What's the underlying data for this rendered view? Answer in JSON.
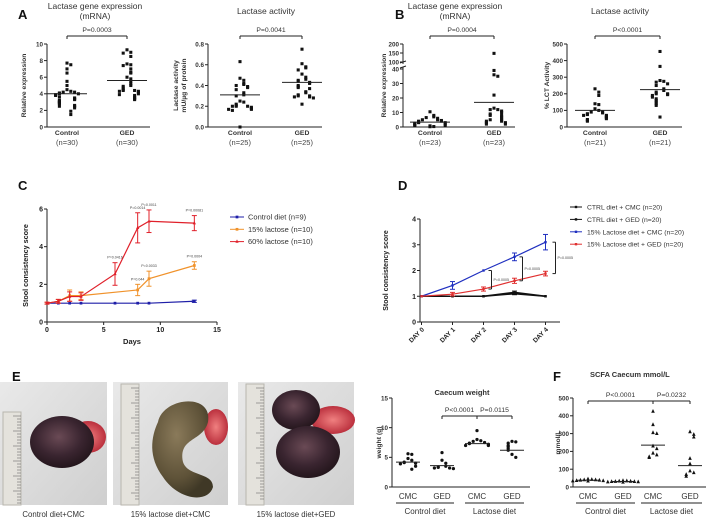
{
  "figure": {
    "panel_labels": [
      "A",
      "B",
      "C",
      "D",
      "E",
      "F"
    ],
    "photos": [
      {
        "caption": "Control diet+CMC"
      },
      {
        "caption": "15% lactose diet+CMC"
      },
      {
        "caption": "15% lactose diet+GED"
      }
    ]
  },
  "chart_data": [
    {
      "type": "scatter",
      "title_lines": [
        "Lactase gene expression",
        "(mRNA)"
      ],
      "ylabel_lines": [
        "Relative expression"
      ],
      "ylim": [
        0,
        10
      ],
      "yticks": [
        "0",
        "2",
        "4",
        "6",
        "8",
        "10"
      ],
      "categories": [
        "Control",
        "GED"
      ],
      "n_labels": [
        "(n=30)",
        "(n=30)"
      ],
      "groups": [
        {
          "values": [
            7.7,
            7.5,
            7.0,
            6.5,
            5.5,
            5.0,
            4.5,
            4.3,
            4.2,
            4.2,
            4.1,
            4.0,
            4.0,
            3.9,
            3.8,
            3.6,
            3.5,
            3.4,
            3.3,
            3.2,
            3.1,
            3.0,
            2.9,
            2.8,
            2.6,
            2.5,
            2.5,
            2.3,
            1.9,
            1.5
          ],
          "mean": 4.0
        },
        {
          "values": [
            9.3,
            9.0,
            8.9,
            8.5,
            7.6,
            7.5,
            7.4,
            7.0,
            6.6,
            6.5,
            6.0,
            5.8,
            5.5,
            5.2,
            5.0,
            4.9,
            4.7,
            4.5,
            4.4,
            4.4,
            4.3,
            4.3,
            4.2,
            4.0,
            3.9,
            3.8,
            3.6,
            3.5,
            3.4,
            3.3
          ],
          "mean": 5.6
        }
      ],
      "comparisons": [
        {
          "between": [
            0,
            1
          ],
          "label": "P=0.0003"
        }
      ]
    },
    {
      "type": "scatter",
      "title_lines": [
        "Lactase activity"
      ],
      "ylabel_lines": [
        "Lactase activity",
        "mU/µg of protein"
      ],
      "ylim": [
        0,
        0.8
      ],
      "yticks": [
        "0.0",
        "0.2",
        "0.4",
        "0.6",
        "0.8"
      ],
      "categories": [
        "Control",
        "GED"
      ],
      "n_labels": [
        "(n=25)",
        "(n=25)"
      ],
      "groups": [
        {
          "values": [
            0.63,
            0.47,
            0.45,
            0.42,
            0.41,
            0.4,
            0.39,
            0.38,
            0.36,
            0.33,
            0.31,
            0.3,
            0.25,
            0.24,
            0.22,
            0.21,
            0.2,
            0.2,
            0.2,
            0.19,
            0.18,
            0.17,
            0.17,
            0.16,
            0.0
          ],
          "mean": 0.31
        },
        {
          "values": [
            0.75,
            0.61,
            0.58,
            0.57,
            0.55,
            0.51,
            0.48,
            0.46,
            0.45,
            0.44,
            0.43,
            0.42,
            0.4,
            0.39,
            0.38,
            0.37,
            0.34,
            0.33,
            0.31,
            0.3,
            0.3,
            0.29,
            0.29,
            0.28,
            0.22
          ],
          "mean": 0.43
        }
      ],
      "comparisons": [
        {
          "between": [
            0,
            1
          ],
          "label": "P=0.0041"
        }
      ]
    },
    {
      "type": "scatter",
      "title_lines": [
        "Lactase gene expression",
        "(mRNA)"
      ],
      "ylabel_lines": [
        "Relative expression"
      ],
      "ylim": [
        0,
        200
      ],
      "axis_break": [
        40,
        100
      ],
      "yticks": [
        "0",
        "10",
        "20",
        "30",
        "40",
        "100",
        "150",
        "200"
      ],
      "categories": [
        "Control",
        "GED"
      ],
      "n_labels": [
        "(n=23)",
        "(n=23)"
      ],
      "groups": [
        {
          "values": [
            10.5,
            8,
            7,
            6.5,
            6,
            5,
            5,
            4.5,
            4,
            4,
            3.5,
            3,
            3,
            2.5,
            2,
            2,
            1.5,
            1,
            1,
            0.8,
            0.5,
            0.3,
            0.2
          ],
          "mean": 3.4
        },
        {
          "values": [
            148,
            39,
            36,
            35,
            22,
            13,
            12,
            12,
            11,
            10,
            9,
            8,
            8,
            7,
            6,
            5,
            5,
            4,
            4,
            3,
            3,
            2,
            2
          ],
          "mean": 17
        }
      ],
      "comparisons": [
        {
          "between": [
            0,
            1
          ],
          "label": "P=0.0004"
        }
      ]
    },
    {
      "type": "scatter",
      "title_lines": [
        "Lactase activity"
      ],
      "ylabel_lines": [
        "% LCT Activity"
      ],
      "ylim": [
        0,
        500
      ],
      "yticks": [
        "0",
        "100",
        "200",
        "300",
        "400",
        "500"
      ],
      "categories": [
        "Control",
        "GED"
      ],
      "n_labels": [
        "(n=21)",
        "(n=21)"
      ],
      "groups": [
        {
          "values": [
            230,
            210,
            190,
            140,
            135,
            110,
            100,
            90,
            90,
            85,
            80,
            75,
            70,
            70,
            65,
            60,
            55,
            50,
            45,
            40,
            35
          ],
          "mean": 100
        },
        {
          "values": [
            455,
            365,
            280,
            275,
            270,
            260,
            250,
            230,
            220,
            210,
            200,
            200,
            195,
            190,
            180,
            170,
            160,
            150,
            140,
            130,
            60
          ],
          "mean": 225
        }
      ],
      "comparisons": [
        {
          "between": [
            0,
            1
          ],
          "label": "P<0.0001"
        }
      ]
    },
    {
      "type": "line",
      "xlabel": "Days",
      "ylabel": "Stool consistency score",
      "xlim": [
        0,
        15
      ],
      "xticks": [
        "0",
        "5",
        "10",
        "15"
      ],
      "ylim": [
        0,
        6
      ],
      "yticks": [
        "0",
        "2",
        "4",
        "6"
      ],
      "legend": "right",
      "series": [
        {
          "name": "Control diet (n=9)",
          "color": "#1f1fa8",
          "marker": "square",
          "x": [
            0,
            1,
            2,
            3,
            6,
            8,
            9,
            13
          ],
          "y": [
            1,
            1,
            1,
            1,
            1,
            1,
            1,
            1.1
          ],
          "err": [
            0,
            0,
            0,
            0,
            0,
            0,
            0,
            0.06
          ]
        },
        {
          "name": "15% lactose (n=10)",
          "color": "#f0922b",
          "marker": "square",
          "x": [
            0,
            1,
            2,
            3,
            8,
            9,
            13
          ],
          "y": [
            1,
            1.1,
            1.4,
            1.4,
            1.7,
            2.3,
            3.0
          ],
          "err": [
            0.05,
            0.1,
            0.3,
            0.2,
            0.3,
            0.4,
            0.2
          ]
        },
        {
          "name": "60% lactose (n=10)",
          "color": "#e0202a",
          "marker": "triangle",
          "x": [
            0,
            1,
            2,
            3,
            6,
            8,
            9,
            13
          ],
          "y": [
            1,
            1.1,
            1.35,
            1.35,
            2.55,
            5.0,
            5.35,
            5.25
          ],
          "err": [
            0.05,
            0.1,
            0.25,
            0.2,
            0.6,
            0.8,
            0.6,
            0.4
          ]
        }
      ],
      "annotations": [
        {
          "series": 2,
          "x": 6,
          "label": "P=0.0416"
        },
        {
          "series": 2,
          "x": 8,
          "label": "P=0.0014"
        },
        {
          "series": 2,
          "x": 9,
          "label": "P=0.0011"
        },
        {
          "series": 2,
          "x": 13,
          "label": "P=0.00081"
        },
        {
          "series": 1,
          "x": 8,
          "label": "P=0.044"
        },
        {
          "series": 1,
          "x": 9,
          "label": "P=0.0033"
        },
        {
          "series": 1,
          "x": 13,
          "label": "P=0.0004"
        }
      ]
    },
    {
      "type": "line",
      "ylabel": "Stool consistency score",
      "categories": [
        "DAY 0",
        "DAY 1",
        "DAY 2",
        "DAY 3",
        "DAY 4"
      ],
      "ylim": [
        0,
        4
      ],
      "yticks": [
        "0",
        "1",
        "2",
        "3",
        "4"
      ],
      "legend": "top-right",
      "series": [
        {
          "name": "CTRL diet + CMC (n=20)",
          "color": "#111111",
          "y": [
            1,
            1,
            1,
            1.15,
            1
          ],
          "err": [
            0,
            0,
            0,
            0.05,
            0
          ]
        },
        {
          "name": "CTRL diet + GED (n=20)",
          "color": "#111111",
          "y": [
            1,
            1,
            1,
            1.1,
            1
          ],
          "err": [
            0,
            0,
            0,
            0.04,
            0
          ]
        },
        {
          "name": "15% Lactose diet + CMC (n=20)",
          "color": "#2030c0",
          "y": [
            1,
            1.42,
            2.0,
            2.53,
            3.1
          ],
          "err": [
            0,
            0.15,
            0.02,
            0.15,
            0.3
          ]
        },
        {
          "name": "15% Lactose diet + GED (n=20)",
          "color": "#e03030",
          "y": [
            1,
            1.08,
            1.28,
            1.6,
            1.88
          ],
          "err": [
            0,
            0.07,
            0.08,
            0.1,
            0.09
          ]
        }
      ],
      "comparisons": [
        {
          "category": 2,
          "series": [
            2,
            3
          ],
          "label": "P=0.0005"
        },
        {
          "category": 3,
          "series": [
            2,
            3
          ],
          "label": "P=0.0005"
        },
        {
          "category": 4,
          "series": [
            2,
            3
          ],
          "label": "P=0.0005"
        }
      ]
    },
    {
      "type": "scatter",
      "title_lines": [
        "Caecum weight"
      ],
      "ylabel_lines": [
        "weight (g)"
      ],
      "ylim": [
        0,
        15
      ],
      "yticks": [
        "0",
        "5",
        "10",
        "15"
      ],
      "categories": [
        "CMC",
        "GED",
        "CMC",
        "GED"
      ],
      "group_labels": [
        "Control diet",
        "Lactose diet"
      ],
      "groups": [
        {
          "values": [
            5.6,
            5.5,
            4.8,
            4.5,
            4.2,
            4.1,
            4.0,
            3.9,
            3.5,
            3.0
          ],
          "mean": 4.2
        },
        {
          "values": [
            5.8,
            4.5,
            4.0,
            3.5,
            3.4,
            3.3,
            3.2,
            3.2,
            3.1
          ],
          "mean": 3.6
        },
        {
          "values": [
            9.5,
            8.0,
            7.8,
            7.7,
            7.5,
            7.4,
            7.3,
            7.2,
            7.1,
            7.0,
            7.0
          ],
          "mean": 7.3
        },
        {
          "values": [
            7.7,
            7.6,
            7.4,
            7.0,
            6.8,
            6.5,
            6.2,
            5.5,
            5.0
          ],
          "mean": 6.2
        }
      ],
      "comparisons": [
        {
          "between": [
            1,
            2
          ],
          "label": "P<0.0001"
        },
        {
          "between": [
            2,
            3
          ],
          "label": "P=0.0115"
        }
      ]
    },
    {
      "type": "scatter",
      "title_lines": [
        "SCFA Caecum mmol/L"
      ],
      "ylabel_lines": [
        "mmol/L"
      ],
      "ylim": [
        0,
        500
      ],
      "yticks": [
        "0",
        "100",
        "200",
        "300",
        "400",
        "500"
      ],
      "categories": [
        "CMC",
        "GED",
        "CMC",
        "GED"
      ],
      "group_labels": [
        "Control diet",
        "Lactose diet"
      ],
      "groups": [
        {
          "values": [
            45,
            42,
            40,
            40,
            38,
            38,
            36,
            35,
            34,
            33
          ],
          "mean": 38
        },
        {
          "values": [
            36,
            34,
            33,
            32,
            31,
            30,
            30,
            29,
            28,
            27
          ],
          "mean": 31
        },
        {
          "values": [
            425,
            350,
            305,
            300,
            230,
            215,
            190,
            180,
            170,
            165
          ],
          "mean": 235
        },
        {
          "values": [
            310,
            295,
            280,
            160,
            130,
            90,
            80,
            70,
            60
          ],
          "mean": 120
        }
      ],
      "comparisons": [
        {
          "between": [
            0,
            2
          ],
          "label": "P<0.0001"
        },
        {
          "between": [
            2,
            3
          ],
          "label": "P=0.0232"
        }
      ]
    }
  ]
}
